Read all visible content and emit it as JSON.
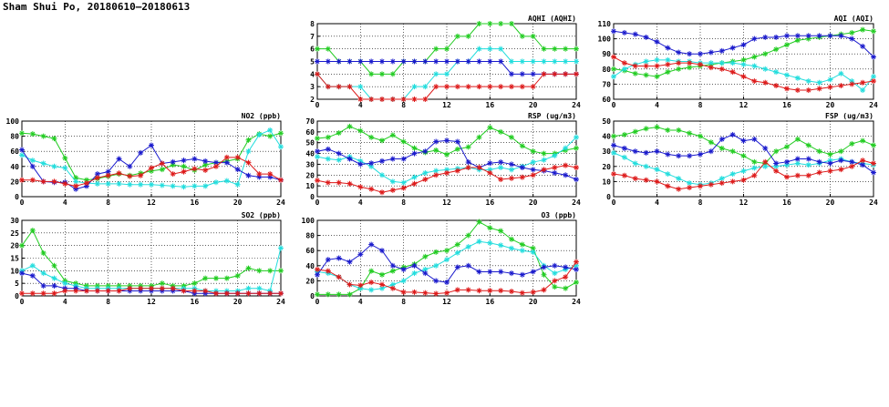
{
  "page": {
    "title": "Sham Shui Po, 20180610–20180613"
  },
  "colors": {
    "green": "#22cc22",
    "cyan": "#22dddd",
    "blue": "#1a1acc",
    "red": "#dd1a1a"
  },
  "chart_data": [
    {
      "type": "line",
      "title": "AQHI (AQHI)",
      "x": [
        0,
        1,
        2,
        3,
        4,
        5,
        6,
        7,
        8,
        9,
        10,
        11,
        12,
        13,
        14,
        15,
        16,
        17,
        18,
        19,
        20,
        21,
        22,
        23,
        24
      ],
      "xlim": [
        0,
        24
      ],
      "ylim": [
        2,
        8
      ],
      "xticks": [
        0,
        4,
        8,
        12,
        16,
        20,
        24
      ],
      "yticks": [
        2,
        3,
        4,
        5,
        6,
        7,
        8
      ],
      "grid": true,
      "series": [
        {
          "color": "green",
          "values": [
            6,
            6,
            5,
            5,
            5,
            4,
            4,
            4,
            5,
            5,
            5,
            6,
            6,
            7,
            7,
            8,
            8,
            8,
            8,
            7,
            7,
            6,
            6,
            6,
            6
          ]
        },
        {
          "color": "cyan",
          "values": [
            4,
            3,
            3,
            3,
            3,
            2,
            2,
            2,
            2,
            3,
            3,
            4,
            4,
            5,
            5,
            6,
            6,
            6,
            5,
            5,
            5,
            5,
            5,
            5,
            5
          ]
        },
        {
          "color": "blue",
          "values": [
            5,
            5,
            5,
            5,
            5,
            5,
            5,
            5,
            5,
            5,
            5,
            5,
            5,
            5,
            5,
            5,
            5,
            5,
            4,
            4,
            4,
            4,
            4,
            4,
            4
          ]
        },
        {
          "color": "red",
          "values": [
            4,
            3,
            3,
            3,
            2,
            2,
            2,
            2,
            2,
            2,
            2,
            3,
            3,
            3,
            3,
            3,
            3,
            3,
            3,
            3,
            3,
            4,
            4,
            4,
            4
          ]
        }
      ]
    },
    {
      "type": "line",
      "title": "AQI (AQI)",
      "x": [
        0,
        1,
        2,
        3,
        4,
        5,
        6,
        7,
        8,
        9,
        10,
        11,
        12,
        13,
        14,
        15,
        16,
        17,
        18,
        19,
        20,
        21,
        22,
        23,
        24
      ],
      "xlim": [
        0,
        24
      ],
      "ylim": [
        60,
        110
      ],
      "xticks": [
        0,
        4,
        8,
        12,
        16,
        20,
        24
      ],
      "yticks": [
        60,
        70,
        80,
        90,
        100,
        110
      ],
      "grid": true,
      "series": [
        {
          "color": "green",
          "values": [
            80,
            79,
            77,
            76,
            75,
            78,
            80,
            81,
            82,
            83,
            84,
            85,
            86,
            88,
            90,
            93,
            96,
            99,
            100,
            101,
            102,
            103,
            104,
            106,
            105
          ]
        },
        {
          "color": "cyan",
          "values": [
            75,
            80,
            83,
            85,
            86,
            86,
            85,
            85,
            84,
            84,
            84,
            84,
            83,
            82,
            80,
            78,
            76,
            74,
            72,
            71,
            73,
            77,
            72,
            66,
            75
          ]
        },
        {
          "color": "blue",
          "values": [
            105,
            104,
            103,
            101,
            98,
            94,
            91,
            90,
            90,
            91,
            92,
            94,
            96,
            100,
            101,
            101,
            102,
            102,
            102,
            102,
            102,
            102,
            100,
            95,
            88
          ]
        },
        {
          "color": "red",
          "values": [
            88,
            84,
            82,
            82,
            82,
            83,
            84,
            84,
            83,
            81,
            80,
            78,
            75,
            72,
            71,
            69,
            67,
            66,
            66,
            67,
            68,
            69,
            70,
            71,
            72
          ]
        }
      ]
    },
    {
      "type": "line",
      "title": "NO2 (ppb)",
      "x": [
        0,
        1,
        2,
        3,
        4,
        5,
        6,
        7,
        8,
        9,
        10,
        11,
        12,
        13,
        14,
        15,
        16,
        17,
        18,
        19,
        20,
        21,
        22,
        23,
        24
      ],
      "xlim": [
        0,
        24
      ],
      "ylim": [
        0,
        100
      ],
      "xticks": [
        0,
        4,
        8,
        12,
        16,
        20,
        24
      ],
      "yticks": [
        0,
        20,
        40,
        60,
        80,
        100
      ],
      "grid": true,
      "series": [
        {
          "color": "green",
          "values": [
            84,
            83,
            80,
            77,
            51,
            25,
            22,
            24,
            27,
            30,
            28,
            31,
            34,
            36,
            42,
            40,
            35,
            42,
            45,
            47,
            50,
            75,
            83,
            80,
            84
          ]
        },
        {
          "color": "cyan",
          "values": [
            55,
            48,
            44,
            40,
            38,
            20,
            18,
            17,
            17,
            17,
            16,
            16,
            16,
            15,
            14,
            13,
            14,
            14,
            19,
            21,
            16,
            60,
            82,
            88,
            66
          ]
        },
        {
          "color": "blue",
          "values": [
            62,
            40,
            20,
            19,
            19,
            10,
            14,
            30,
            33,
            50,
            40,
            58,
            68,
            44,
            46,
            48,
            50,
            47,
            45,
            45,
            36,
            28,
            26,
            26,
            22
          ]
        },
        {
          "color": "red",
          "values": [
            22,
            22,
            20,
            20,
            17,
            14,
            18,
            25,
            28,
            31,
            27,
            28,
            38,
            44,
            30,
            33,
            37,
            35,
            40,
            52,
            52,
            45,
            30,
            30,
            22
          ]
        }
      ]
    },
    {
      "type": "line",
      "title": "RSP (ug/m3)",
      "x": [
        0,
        1,
        2,
        3,
        4,
        5,
        6,
        7,
        8,
        9,
        10,
        11,
        12,
        13,
        14,
        15,
        16,
        17,
        18,
        19,
        20,
        21,
        22,
        23,
        24
      ],
      "xlim": [
        0,
        24
      ],
      "ylim": [
        0,
        70
      ],
      "xticks": [
        0,
        4,
        8,
        12,
        16,
        20,
        24
      ],
      "yticks": [
        0,
        10,
        20,
        30,
        40,
        50,
        60,
        70
      ],
      "grid": true,
      "series": [
        {
          "color": "green",
          "values": [
            54,
            55,
            59,
            65,
            61,
            55,
            52,
            57,
            51,
            45,
            41,
            43,
            39,
            44,
            46,
            55,
            64,
            60,
            55,
            47,
            42,
            40,
            40,
            43,
            45
          ]
        },
        {
          "color": "cyan",
          "values": [
            37,
            35,
            34,
            37,
            33,
            28,
            20,
            14,
            13,
            18,
            22,
            24,
            25,
            26,
            27,
            25,
            25,
            27,
            25,
            28,
            32,
            34,
            38,
            45,
            55
          ]
        },
        {
          "color": "blue",
          "values": [
            42,
            44,
            40,
            35,
            30,
            31,
            33,
            35,
            35,
            40,
            42,
            51,
            52,
            51,
            32,
            27,
            31,
            32,
            30,
            27,
            25,
            24,
            22,
            20,
            16
          ]
        },
        {
          "color": "red",
          "values": [
            15,
            13,
            13,
            12,
            9,
            7,
            4,
            6,
            8,
            12,
            16,
            20,
            22,
            24,
            27,
            27,
            22,
            16,
            17,
            18,
            20,
            25,
            27,
            29,
            27
          ]
        }
      ]
    },
    {
      "type": "line",
      "title": "FSP (ug/m3)",
      "x": [
        0,
        1,
        2,
        3,
        4,
        5,
        6,
        7,
        8,
        9,
        10,
        11,
        12,
        13,
        14,
        15,
        16,
        17,
        18,
        19,
        20,
        21,
        22,
        23,
        24
      ],
      "xlim": [
        0,
        24
      ],
      "ylim": [
        0,
        50
      ],
      "xticks": [
        0,
        4,
        8,
        12,
        16,
        20,
        24
      ],
      "yticks": [
        0,
        10,
        20,
        30,
        40,
        50
      ],
      "grid": true,
      "series": [
        {
          "color": "green",
          "values": [
            40,
            41,
            43,
            45,
            46,
            44,
            44,
            42,
            40,
            36,
            32,
            30,
            27,
            23,
            22,
            30,
            33,
            38,
            34,
            30,
            28,
            30,
            35,
            37,
            34
          ]
        },
        {
          "color": "cyan",
          "values": [
            29,
            26,
            22,
            20,
            18,
            15,
            12,
            9,
            8,
            9,
            12,
            15,
            17,
            19,
            20,
            20,
            21,
            22,
            21,
            22,
            24,
            25,
            23,
            22,
            21
          ]
        },
        {
          "color": "blue",
          "values": [
            34,
            32,
            30,
            29,
            30,
            28,
            27,
            27,
            28,
            30,
            38,
            41,
            37,
            38,
            32,
            22,
            23,
            25,
            25,
            23,
            22,
            24,
            23,
            21,
            16
          ]
        },
        {
          "color": "red",
          "values": [
            15,
            14,
            12,
            11,
            10,
            7,
            5,
            6,
            7,
            8,
            9,
            10,
            11,
            14,
            23,
            17,
            13,
            14,
            14,
            16,
            17,
            18,
            20,
            24,
            22
          ]
        }
      ]
    },
    {
      "type": "line",
      "title": "SO2 (ppb)",
      "x": [
        0,
        1,
        2,
        3,
        4,
        5,
        6,
        7,
        8,
        9,
        10,
        11,
        12,
        13,
        14,
        15,
        16,
        17,
        18,
        19,
        20,
        21,
        22,
        23,
        24
      ],
      "xlim": [
        0,
        24
      ],
      "ylim": [
        0,
        30
      ],
      "xticks": [
        0,
        4,
        8,
        12,
        16,
        20,
        24
      ],
      "yticks": [
        0,
        5,
        10,
        15,
        20,
        25,
        30
      ],
      "grid": true,
      "series": [
        {
          "color": "green",
          "values": [
            20,
            26,
            17,
            12,
            6,
            5,
            4,
            4,
            4,
            4,
            4,
            4,
            4,
            5,
            4,
            4,
            5,
            7,
            7,
            7,
            8,
            11,
            10,
            10,
            10
          ]
        },
        {
          "color": "cyan",
          "values": [
            10,
            12,
            9,
            7,
            5,
            4,
            3,
            3,
            3,
            3,
            3,
            3,
            3,
            3,
            3,
            3,
            3,
            2,
            2,
            2,
            2,
            3,
            3,
            2,
            19
          ]
        },
        {
          "color": "blue",
          "values": [
            9,
            8,
            4,
            4,
            3,
            3,
            2,
            2,
            2,
            2,
            2,
            2,
            2,
            2,
            2,
            2,
            1,
            1,
            1,
            1,
            1,
            1,
            1,
            1,
            1
          ]
        },
        {
          "color": "red",
          "values": [
            1,
            1,
            1,
            1,
            2,
            2,
            2,
            2,
            2,
            2,
            3,
            3,
            3,
            3,
            3,
            2,
            2,
            2,
            1,
            1,
            1,
            1,
            1,
            1,
            1
          ]
        }
      ]
    },
    {
      "type": "line",
      "title": "O3 (ppb)",
      "x": [
        0,
        1,
        2,
        3,
        4,
        5,
        6,
        7,
        8,
        9,
        10,
        11,
        12,
        13,
        14,
        15,
        16,
        17,
        18,
        19,
        20,
        21,
        22,
        23,
        24
      ],
      "xlim": [
        0,
        24
      ],
      "ylim": [
        0,
        100
      ],
      "xticks": [
        0,
        4,
        8,
        12,
        16,
        20,
        24
      ],
      "yticks": [
        0,
        20,
        40,
        60,
        80,
        100
      ],
      "grid": true,
      "series": [
        {
          "color": "green",
          "values": [
            2,
            2,
            2,
            2,
            10,
            33,
            28,
            33,
            38,
            42,
            52,
            58,
            60,
            68,
            80,
            98,
            90,
            86,
            75,
            68,
            63,
            28,
            12,
            10,
            18
          ]
        },
        {
          "color": "cyan",
          "values": [
            32,
            30,
            25,
            15,
            10,
            8,
            10,
            15,
            20,
            30,
            35,
            40,
            48,
            57,
            65,
            72,
            70,
            67,
            63,
            60,
            58,
            40,
            30,
            35,
            40
          ]
        },
        {
          "color": "blue",
          "values": [
            28,
            48,
            50,
            45,
            55,
            68,
            60,
            40,
            35,
            40,
            30,
            20,
            18,
            38,
            40,
            32,
            32,
            32,
            30,
            28,
            32,
            38,
            40,
            38,
            35
          ]
        },
        {
          "color": "red",
          "values": [
            35,
            33,
            25,
            15,
            14,
            18,
            15,
            10,
            5,
            5,
            4,
            3,
            4,
            8,
            8,
            7,
            7,
            7,
            6,
            4,
            5,
            8,
            20,
            25,
            45
          ]
        }
      ]
    }
  ]
}
